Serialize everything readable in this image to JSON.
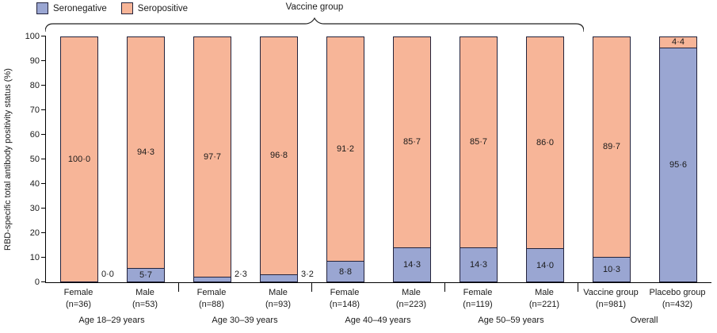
{
  "chart_data": {
    "type": "bar",
    "stacked": true,
    "ylabel": "RBD-specific total antibody positivity status (%)",
    "ylim": [
      0,
      100
    ],
    "ytick_step": 10,
    "legend_position": "top-left",
    "colors": {
      "seronegative": "#9aa6d2",
      "seropositive": "#f7b598"
    },
    "bar_border_color": "#23233c",
    "vaccine_brace": {
      "label": "Vaccine group",
      "covers_bars": [
        0,
        7
      ]
    },
    "categories": [
      {
        "label": "Female",
        "n": "(n=36)"
      },
      {
        "label": "Male",
        "n": "(n=53)"
      },
      {
        "label": "Female",
        "n": "(n=88)"
      },
      {
        "label": "Male",
        "n": "(n=93)"
      },
      {
        "label": "Female",
        "n": "(n=148)"
      },
      {
        "label": "Male",
        "n": "(n=223)"
      },
      {
        "label": "Female",
        "n": "(n=119)"
      },
      {
        "label": "Male",
        "n": "(n=221)"
      },
      {
        "label": "Vaccine group",
        "n": "(n=981)"
      },
      {
        "label": "Placebo group",
        "n": "(n=432)"
      }
    ],
    "groups": [
      {
        "label": "Age 18–29 years",
        "span": [
          0,
          1
        ]
      },
      {
        "label": "Age 30–39 years",
        "span": [
          2,
          3
        ]
      },
      {
        "label": "Age 40–49 years",
        "span": [
          4,
          5
        ]
      },
      {
        "label": "Age 50–59 years",
        "span": [
          6,
          7
        ]
      },
      {
        "label": "Overall",
        "span": [
          8,
          9
        ]
      }
    ],
    "series": [
      {
        "name": "Seronegative",
        "values": [
          0.0,
          5.7,
          2.3,
          3.2,
          8.8,
          14.3,
          14.3,
          14.0,
          10.3,
          95.6
        ],
        "labels": [
          "0·0",
          "5·7",
          "2·3",
          "3·2",
          "8·8",
          "14·3",
          "14·3",
          "14·0",
          "10·3",
          "95·6"
        ],
        "label_outside": [
          true,
          false,
          true,
          true,
          false,
          false,
          false,
          false,
          false,
          false
        ]
      },
      {
        "name": "Seropositive",
        "values": [
          100.0,
          94.3,
          97.7,
          96.8,
          91.2,
          85.7,
          85.7,
          86.0,
          89.7,
          4.4
        ],
        "labels": [
          "100·0",
          "94·3",
          "97·7",
          "96·8",
          "91·2",
          "85·7",
          "85·7",
          "86·0",
          "89·7",
          "4·4"
        ],
        "label_outside": [
          false,
          false,
          false,
          false,
          false,
          false,
          false,
          false,
          false,
          false
        ]
      }
    ]
  }
}
